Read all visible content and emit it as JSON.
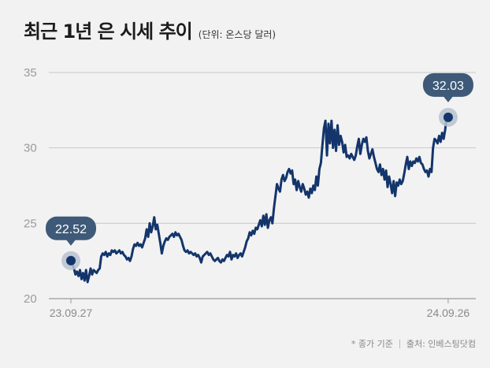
{
  "header": {
    "title": "최근 1년 은 시세 추이",
    "unit": "(단위: 온스당 달러)"
  },
  "footer": {
    "note": "* 종가 기준",
    "source": "출처: 인베스팅닷컴"
  },
  "colors": {
    "line": "#13356b",
    "grid": "#c8c8c8",
    "callout": "#3e5a78",
    "halo": "#b9c2cf"
  },
  "chart_data": {
    "type": "line",
    "title": "최근 1년 은 시세 추이",
    "ylabel": "",
    "xlabel": "",
    "ylim": [
      20,
      35
    ],
    "yticks": [
      20,
      25,
      30,
      35
    ],
    "x_tick_labels": [
      {
        "label": "23.09.27",
        "index": 0
      },
      {
        "label": "24.09.26",
        "index": 249
      }
    ],
    "grid": true,
    "series": [
      {
        "values": [
          22.52,
          22.3,
          22.0,
          21.6,
          21.8,
          21.5,
          21.9,
          21.3,
          21.7,
          21.2,
          21.9,
          21.1,
          21.5,
          22.0,
          21.6,
          21.9,
          21.8,
          21.7,
          21.9,
          22.0,
          22.8,
          23.0,
          22.9,
          23.1,
          22.8,
          23.0,
          22.9,
          23.2,
          23.1,
          23.2,
          23.0,
          23.1,
          23.2,
          23.0,
          23.1,
          22.9,
          22.8,
          22.6,
          22.7,
          22.5,
          22.8,
          23.3,
          23.6,
          23.5,
          23.7,
          23.5,
          23.6,
          23.4,
          23.7,
          24.0,
          24.6,
          24.1,
          25.0,
          24.4,
          24.8,
          25.4,
          24.6,
          24.9,
          24.3,
          23.7,
          23.0,
          23.5,
          23.8,
          24.0,
          23.9,
          24.1,
          24.2,
          24.3,
          24.1,
          24.4,
          24.2,
          24.3,
          24.1,
          23.9,
          23.5,
          23.2,
          23.1,
          23.2,
          23.0,
          23.1,
          23.0,
          22.9,
          23.0,
          22.8,
          22.9,
          22.7,
          22.4,
          22.8,
          22.9,
          23.0,
          23.1,
          22.9,
          23.0,
          22.8,
          22.6,
          22.5,
          22.6,
          22.7,
          22.5,
          22.4,
          22.6,
          22.5,
          22.7,
          22.9,
          22.8,
          23.1,
          22.6,
          22.9,
          22.8,
          23.0,
          22.7,
          22.9,
          23.0,
          22.8,
          23.1,
          23.4,
          23.8,
          24.0,
          24.4,
          24.2,
          24.5,
          24.3,
          24.7,
          24.6,
          24.9,
          25.2,
          24.8,
          25.5,
          24.9,
          25.6,
          24.7,
          25.2,
          25.4,
          25.0,
          26.0,
          26.8,
          27.6,
          27.3,
          27.1,
          27.9,
          28.2,
          27.8,
          28.0,
          28.4,
          28.6,
          28.3,
          28.5,
          27.6,
          27.9,
          27.2,
          27.8,
          27.4,
          27.1,
          27.6,
          27.3,
          26.9,
          27.1,
          26.7,
          27.3,
          27.0,
          27.5,
          27.2,
          28.1,
          27.5,
          28.6,
          29.0,
          30.2,
          31.3,
          31.8,
          29.5,
          31.6,
          30.3,
          31.8,
          30.0,
          31.2,
          29.8,
          31.5,
          30.2,
          30.8,
          30.4,
          29.7,
          30.2,
          29.4,
          29.5,
          29.3,
          29.6,
          29.4,
          29.2,
          29.5,
          30.1,
          30.6,
          29.6,
          30.2,
          30.6,
          30.4,
          30.7,
          29.8,
          29.3,
          29.6,
          29.9,
          29.4,
          29.0,
          28.6,
          28.4,
          28.9,
          28.2,
          28.6,
          27.9,
          28.5,
          27.4,
          28.1,
          27.6,
          27.0,
          27.8,
          26.8,
          27.7,
          27.5,
          27.9,
          27.6,
          27.8,
          28.3,
          28.9,
          29.4,
          28.6,
          29.1,
          28.8,
          29.1,
          29.0,
          29.3,
          29.1,
          29.4,
          29.0,
          28.9,
          28.6,
          28.4,
          28.5,
          28.1,
          28.6,
          28.4,
          30.0,
          30.6,
          30.5,
          30.3,
          30.8,
          30.4,
          31.0,
          30.6,
          31.2,
          32.03
        ]
      }
    ],
    "annotations": [
      {
        "label": "22.52",
        "index": 0,
        "value": 22.52
      },
      {
        "label": "32.03",
        "index": 249,
        "value": 32.03
      }
    ]
  }
}
